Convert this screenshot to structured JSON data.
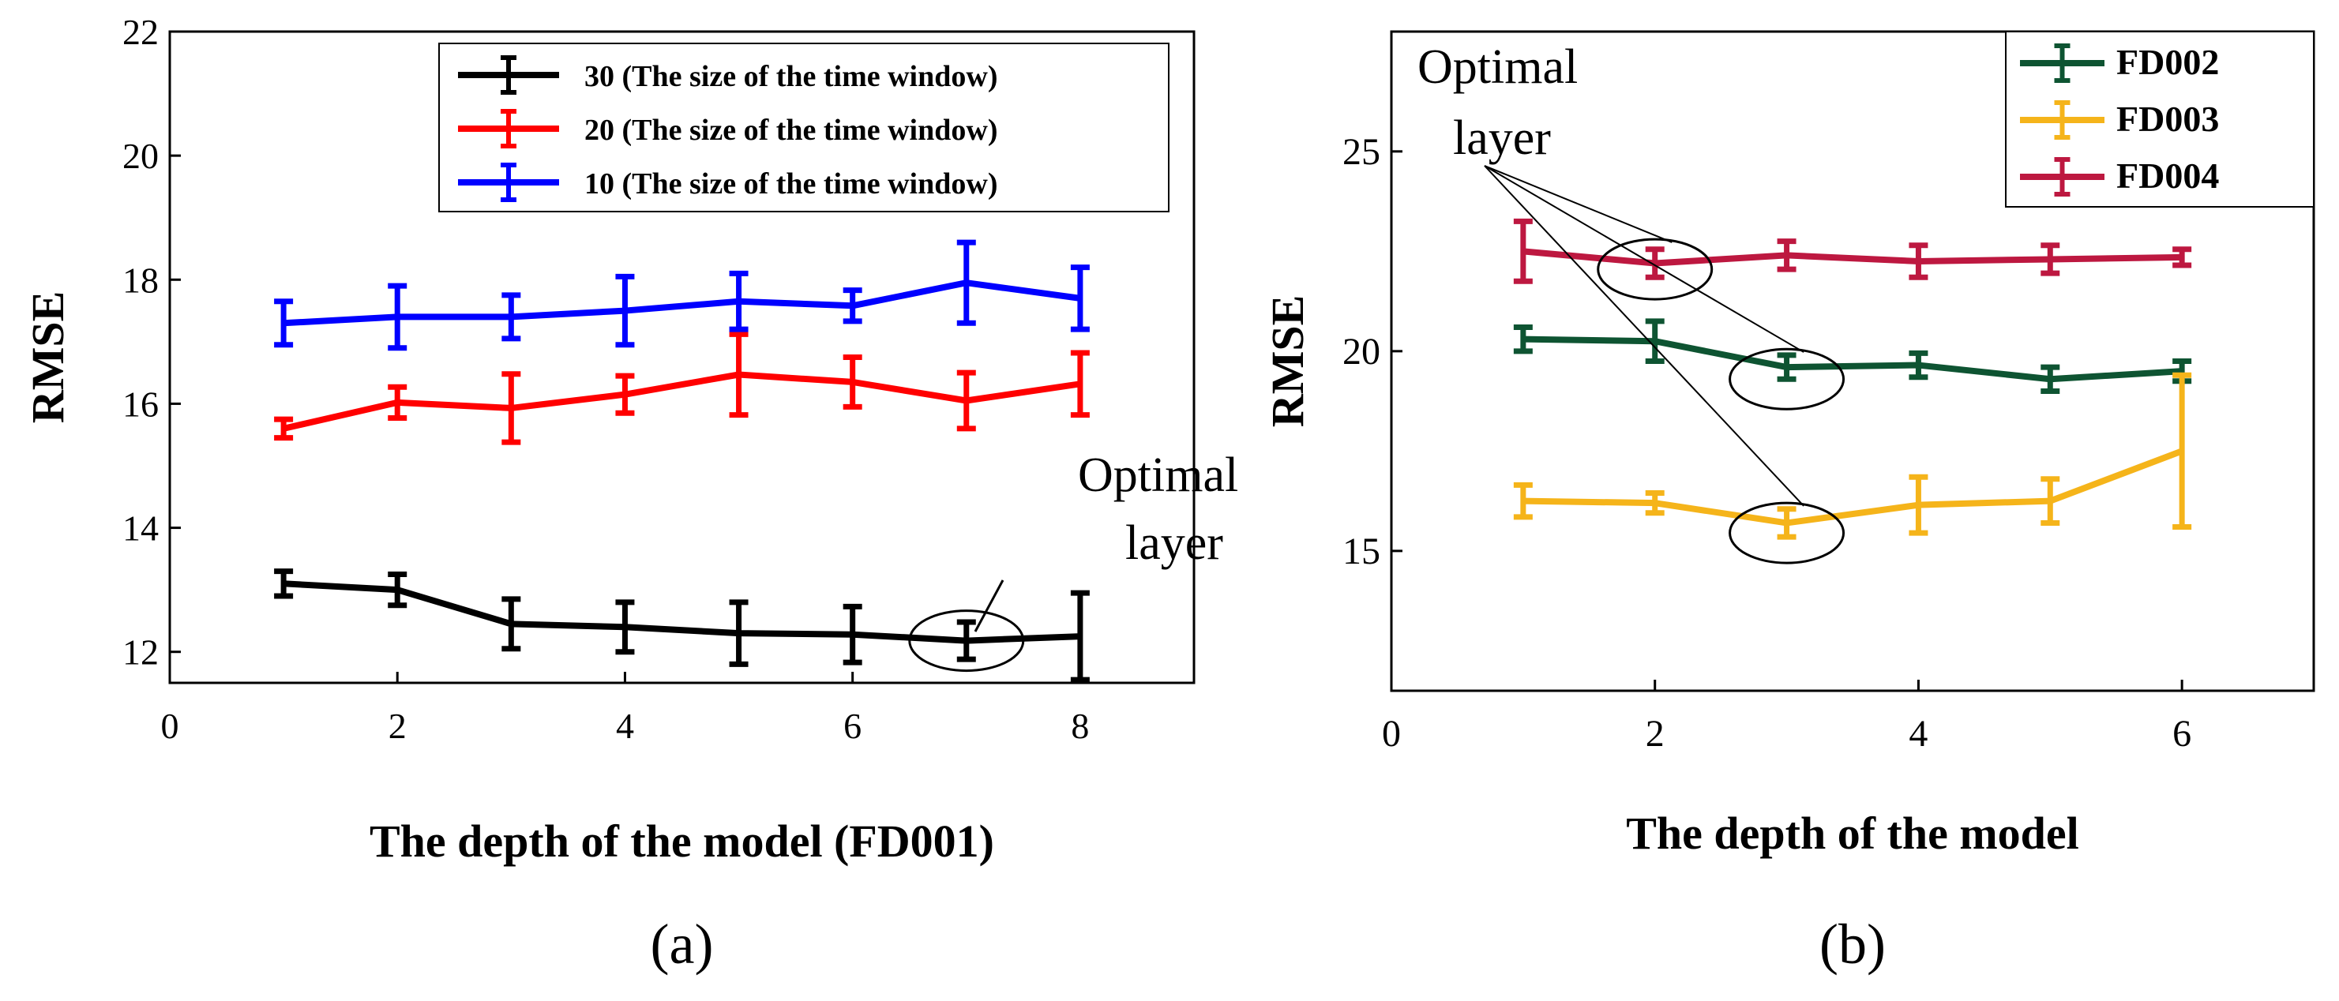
{
  "chart_data": [
    {
      "panel_label": "(a)",
      "type": "line",
      "xlabel": "The depth of the model (FD001)",
      "ylabel": "RMSE",
      "xlim": [
        0,
        9
      ],
      "ylim": [
        11.5,
        22
      ],
      "xticks": [
        0,
        2,
        4,
        6,
        8
      ],
      "yticks": [
        12,
        14,
        16,
        18,
        20,
        22
      ],
      "grid": false,
      "legend_position": "top-right",
      "series": [
        {
          "name": "30 (The size of the time window)",
          "color": "#000000",
          "x": [
            1,
            2,
            3,
            4,
            5,
            6,
            7,
            8
          ],
          "y": [
            13.1,
            13.0,
            12.45,
            12.4,
            12.3,
            12.28,
            12.18,
            12.25
          ],
          "err": [
            0.2,
            0.25,
            0.4,
            0.4,
            0.5,
            0.45,
            0.3,
            0.7
          ]
        },
        {
          "name": "20 (The size of the time window)",
          "color": "#ff0000",
          "x": [
            1,
            2,
            3,
            4,
            5,
            6,
            7,
            8
          ],
          "y": [
            15.6,
            16.02,
            15.93,
            16.15,
            16.47,
            16.35,
            16.05,
            16.32
          ],
          "err": [
            0.15,
            0.25,
            0.55,
            0.3,
            0.65,
            0.4,
            0.45,
            0.5
          ]
        },
        {
          "name": "10 (The size of the time window)",
          "color": "#0000ff",
          "x": [
            1,
            2,
            3,
            4,
            5,
            6,
            7,
            8
          ],
          "y": [
            17.3,
            17.4,
            17.4,
            17.5,
            17.65,
            17.58,
            17.95,
            17.7
          ],
          "err": [
            0.35,
            0.5,
            0.35,
            0.55,
            0.45,
            0.25,
            0.65,
            0.5
          ]
        }
      ],
      "annotations": [
        {
          "text": [
            "Optimal",
            "layer"
          ],
          "x": 7,
          "y": 12.18
        }
      ]
    },
    {
      "panel_label": "(b)",
      "type": "line",
      "xlabel": "The depth of the model",
      "ylabel": "RMSE",
      "xlim": [
        0,
        7
      ],
      "ylim": [
        11.5,
        28
      ],
      "xticks": [
        0,
        2,
        4,
        6
      ],
      "yticks": [
        15,
        20,
        25
      ],
      "grid": false,
      "legend_position": "top-right",
      "series": [
        {
          "name": "FD002",
          "color": "#0e5432",
          "x": [
            1,
            2,
            3,
            4,
            5,
            6
          ],
          "y": [
            20.3,
            20.25,
            19.6,
            19.65,
            19.3,
            19.5
          ],
          "err": [
            0.3,
            0.5,
            0.3,
            0.3,
            0.3,
            0.25
          ]
        },
        {
          "name": "FD003",
          "color": "#f5b41a",
          "x": [
            1,
            2,
            3,
            4,
            5,
            6
          ],
          "y": [
            16.25,
            16.2,
            15.7,
            16.15,
            16.25,
            17.5
          ],
          "err": [
            0.4,
            0.25,
            0.35,
            0.7,
            0.55,
            1.9
          ]
        },
        {
          "name": "FD004",
          "color": "#bd1840",
          "x": [
            1,
            2,
            3,
            4,
            5,
            6
          ],
          "y": [
            22.5,
            22.2,
            22.4,
            22.25,
            22.3,
            22.35
          ],
          "err": [
            0.75,
            0.35,
            0.35,
            0.4,
            0.35,
            0.2
          ]
        }
      ],
      "annotations": [
        {
          "text": [
            "Optimal",
            "layer"
          ],
          "targets": [
            {
              "series": "FD004",
              "x": 2,
              "y": 22.05
            },
            {
              "series": "FD002",
              "x": 3,
              "y": 19.3
            },
            {
              "series": "FD003",
              "x": 3,
              "y": 15.45
            }
          ]
        }
      ]
    }
  ]
}
